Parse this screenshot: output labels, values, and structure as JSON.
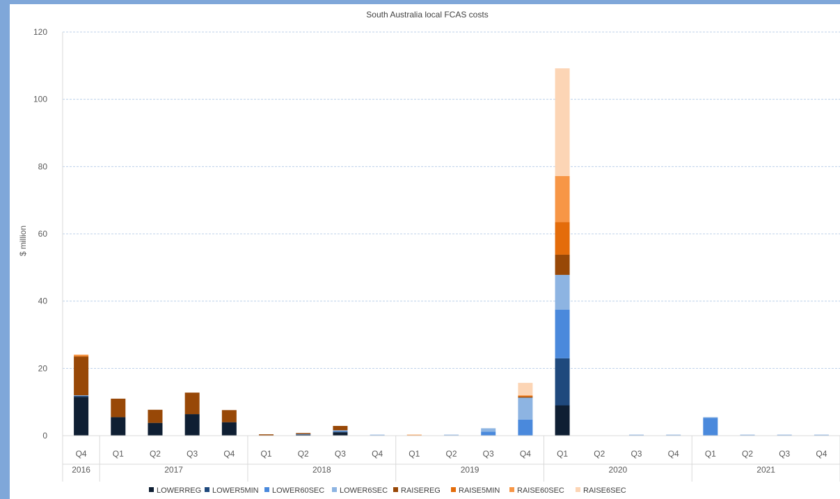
{
  "chart_data": {
    "type": "bar",
    "stacked": true,
    "title": "South Australia local FCAS costs",
    "ylabel": "$ million",
    "xlabel": "",
    "ylim": [
      0,
      120
    ],
    "yticks": [
      0,
      20,
      40,
      60,
      80,
      100,
      120
    ],
    "grid": true,
    "legend_position": "bottom",
    "categories": [
      "Q4",
      "Q1",
      "Q2",
      "Q3",
      "Q4",
      "Q1",
      "Q2",
      "Q3",
      "Q4",
      "Q1",
      "Q2",
      "Q3",
      "Q4",
      "Q1",
      "Q2",
      "Q3",
      "Q4",
      "Q1",
      "Q2",
      "Q3",
      "Q4"
    ],
    "year_groups": [
      {
        "label": "2016",
        "count": 1
      },
      {
        "label": "2017",
        "count": 4
      },
      {
        "label": "2018",
        "count": 4
      },
      {
        "label": "2019",
        "count": 4
      },
      {
        "label": "2020",
        "count": 4
      },
      {
        "label": "2021",
        "count": 4
      }
    ],
    "series": [
      {
        "name": "LOWERREG",
        "color": "#0f1f33",
        "values": [
          11.5,
          5.5,
          3.8,
          6.4,
          4.0,
          0.1,
          0.3,
          1.0,
          0,
          0,
          0,
          0,
          0,
          9.0,
          0,
          0,
          0,
          0,
          0,
          0,
          0
        ]
      },
      {
        "name": "LOWER5MIN",
        "color": "#1f497d",
        "values": [
          0.3,
          0,
          0,
          0,
          0,
          0,
          0.1,
          0.2,
          0,
          0,
          0,
          0,
          0,
          14.0,
          0,
          0,
          0,
          0,
          0,
          0,
          0
        ]
      },
      {
        "name": "LOWER60SEC",
        "color": "#4a89dc",
        "values": [
          0,
          0,
          0,
          0,
          0,
          0,
          0,
          0.2,
          0,
          0,
          0,
          1.2,
          4.8,
          14.5,
          0,
          0,
          0,
          5.3,
          0,
          0,
          0
        ]
      },
      {
        "name": "LOWER6SEC",
        "color": "#8db4e2",
        "values": [
          0.2,
          0,
          0,
          0,
          0,
          0,
          0.1,
          0.2,
          0.3,
          0,
          0.3,
          1.0,
          6.5,
          10.3,
          0,
          0.3,
          0.3,
          0.2,
          0.3,
          0.3,
          0.3
        ]
      },
      {
        "name": "RAISEREG",
        "color": "#984807",
        "values": [
          11.5,
          5.5,
          3.9,
          6.4,
          3.6,
          0.3,
          0.3,
          1.3,
          0,
          0,
          0,
          0,
          0.3,
          6.0,
          0,
          0,
          0,
          0,
          0,
          0,
          0
        ]
      },
      {
        "name": "RAISE5MIN",
        "color": "#e46c0a",
        "values": [
          0.2,
          0,
          0,
          0,
          0,
          0,
          0,
          0,
          0,
          0.1,
          0,
          0,
          0.2,
          9.7,
          0,
          0,
          0,
          0,
          0,
          0,
          0
        ]
      },
      {
        "name": "RAISE60SEC",
        "color": "#f79646",
        "values": [
          0.3,
          0,
          0,
          0,
          0,
          0,
          0,
          0,
          0,
          0.2,
          0,
          0,
          0.2,
          13.7,
          0,
          0,
          0,
          0,
          0,
          0,
          0
        ]
      },
      {
        "name": "RAISE6SEC",
        "color": "#fcd5b5",
        "values": [
          0.2,
          0,
          0,
          0,
          0,
          0,
          0,
          0,
          0,
          0.1,
          0,
          0,
          3.7,
          32.0,
          0,
          0,
          0,
          0,
          0,
          0,
          0
        ]
      }
    ]
  }
}
